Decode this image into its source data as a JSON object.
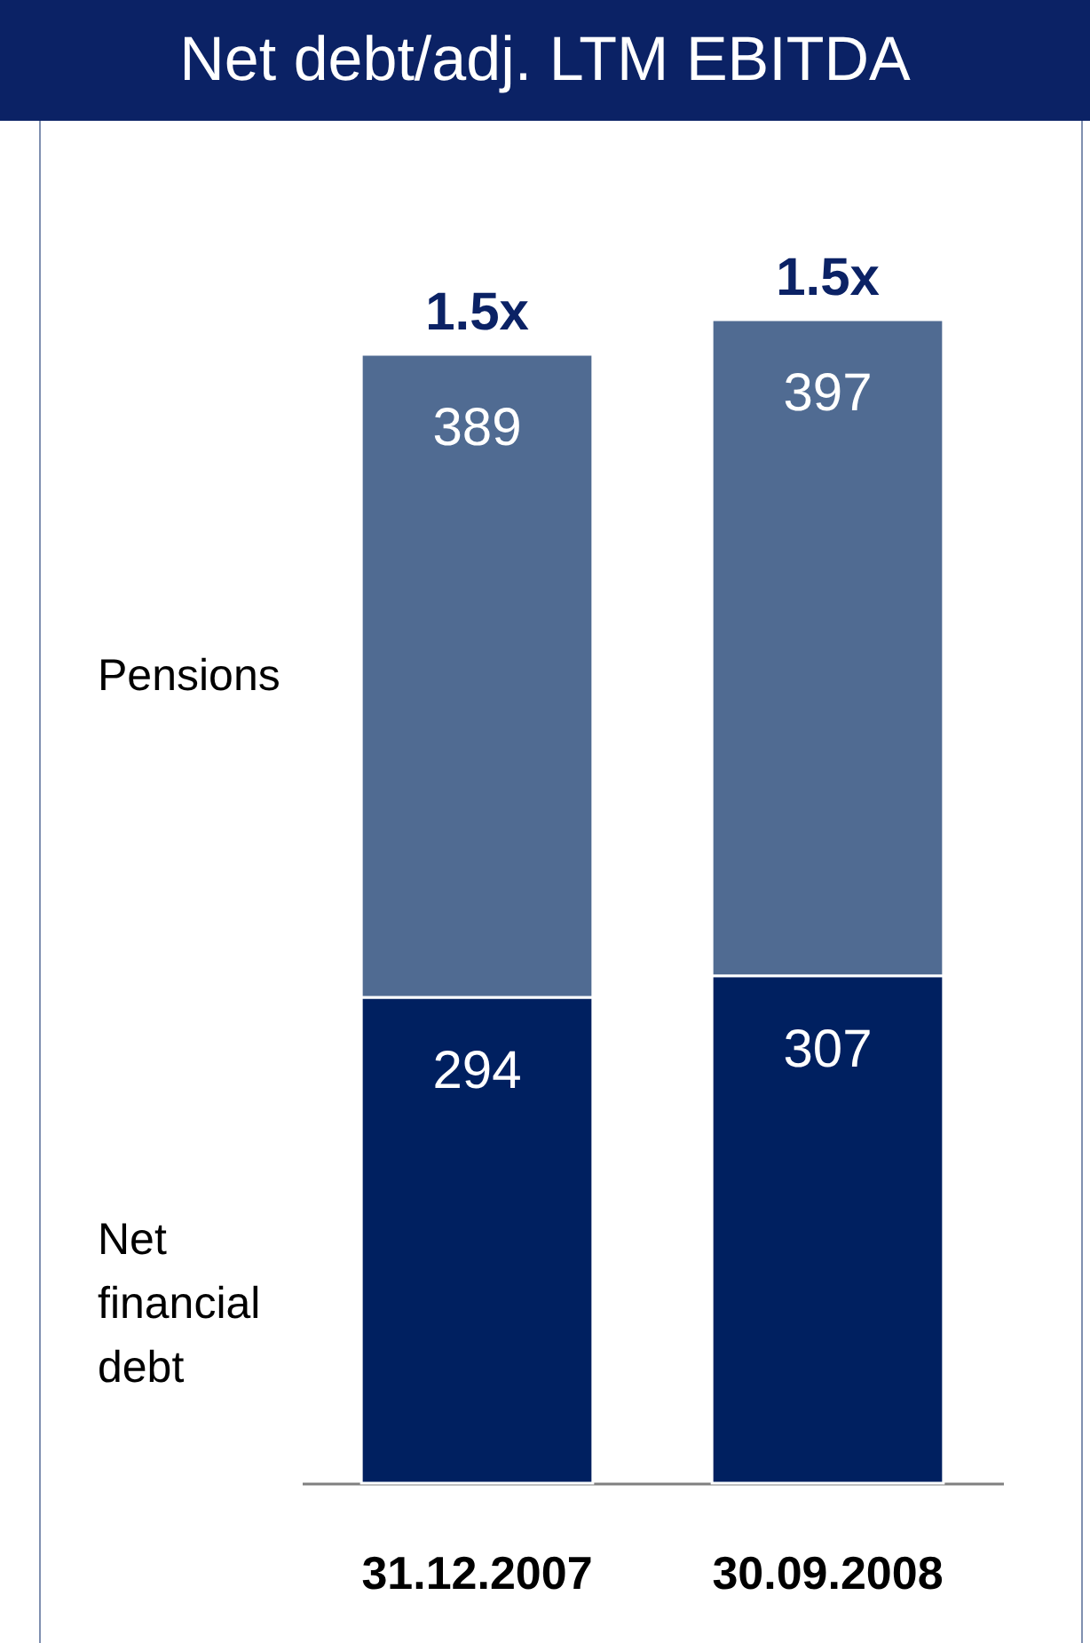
{
  "chart_data": {
    "type": "bar",
    "title": "Net debt/adj. LTM EBITDA",
    "categories": [
      "31.12.2007",
      "30.09.2008"
    ],
    "stacked": true,
    "data_labels": true,
    "legend": "left",
    "annotations": [
      {
        "text": "1.5x",
        "x": "31.12.2007",
        "y": 683
      },
      {
        "text": "1.5x",
        "x": "30.09.2008",
        "y": 704
      }
    ],
    "series": [
      {
        "name": "Net financial debt",
        "color": "#002060",
        "values": [
          294,
          307
        ]
      },
      {
        "name": "Pensions",
        "color": "#506b92",
        "values": [
          389,
          397
        ]
      }
    ]
  }
}
